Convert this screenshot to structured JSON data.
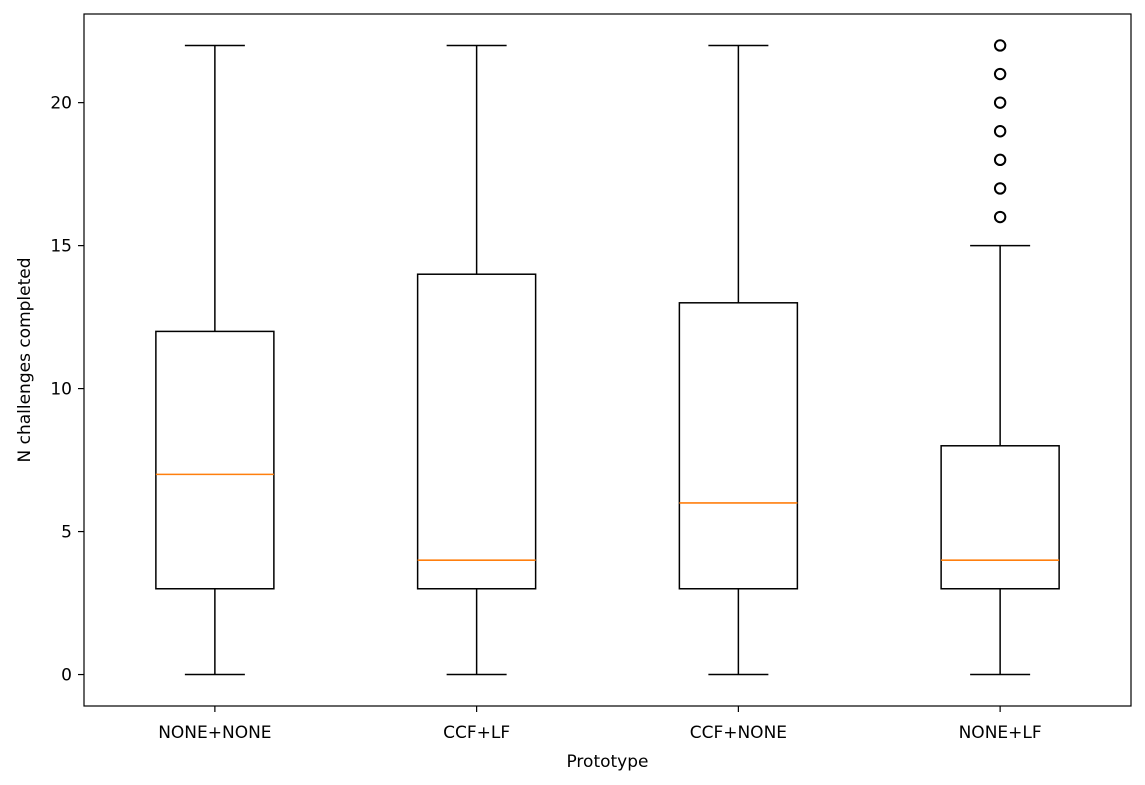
{
  "chart_data": {
    "type": "boxplot",
    "title": "",
    "xlabel": "Prototype",
    "ylabel": "N challenges completed",
    "ylim": [
      -1.1,
      23.1
    ],
    "yticks": [
      0,
      5,
      10,
      15,
      20
    ],
    "grid": false,
    "categories": [
      "NONE+NONE",
      "CCF+LF",
      "CCF+NONE",
      "NONE+LF"
    ],
    "boxes": [
      {
        "category": "NONE+NONE",
        "whisker_low": 0,
        "q1": 3,
        "median": 7,
        "q3": 12,
        "whisker_high": 22,
        "outliers": []
      },
      {
        "category": "CCF+LF",
        "whisker_low": 0,
        "q1": 3,
        "median": 4,
        "q3": 14,
        "whisker_high": 22,
        "outliers": []
      },
      {
        "category": "CCF+NONE",
        "whisker_low": 0,
        "q1": 3,
        "median": 6,
        "q3": 13,
        "whisker_high": 22,
        "outliers": []
      },
      {
        "category": "NONE+LF",
        "whisker_low": 0,
        "q1": 3,
        "median": 4,
        "q3": 8,
        "whisker_high": 15,
        "outliers": [
          16,
          17,
          18,
          19,
          20,
          21,
          22
        ]
      }
    ],
    "colors": {
      "box": "#000000",
      "median": "#ff7f0e",
      "outlier": "#000000"
    }
  }
}
